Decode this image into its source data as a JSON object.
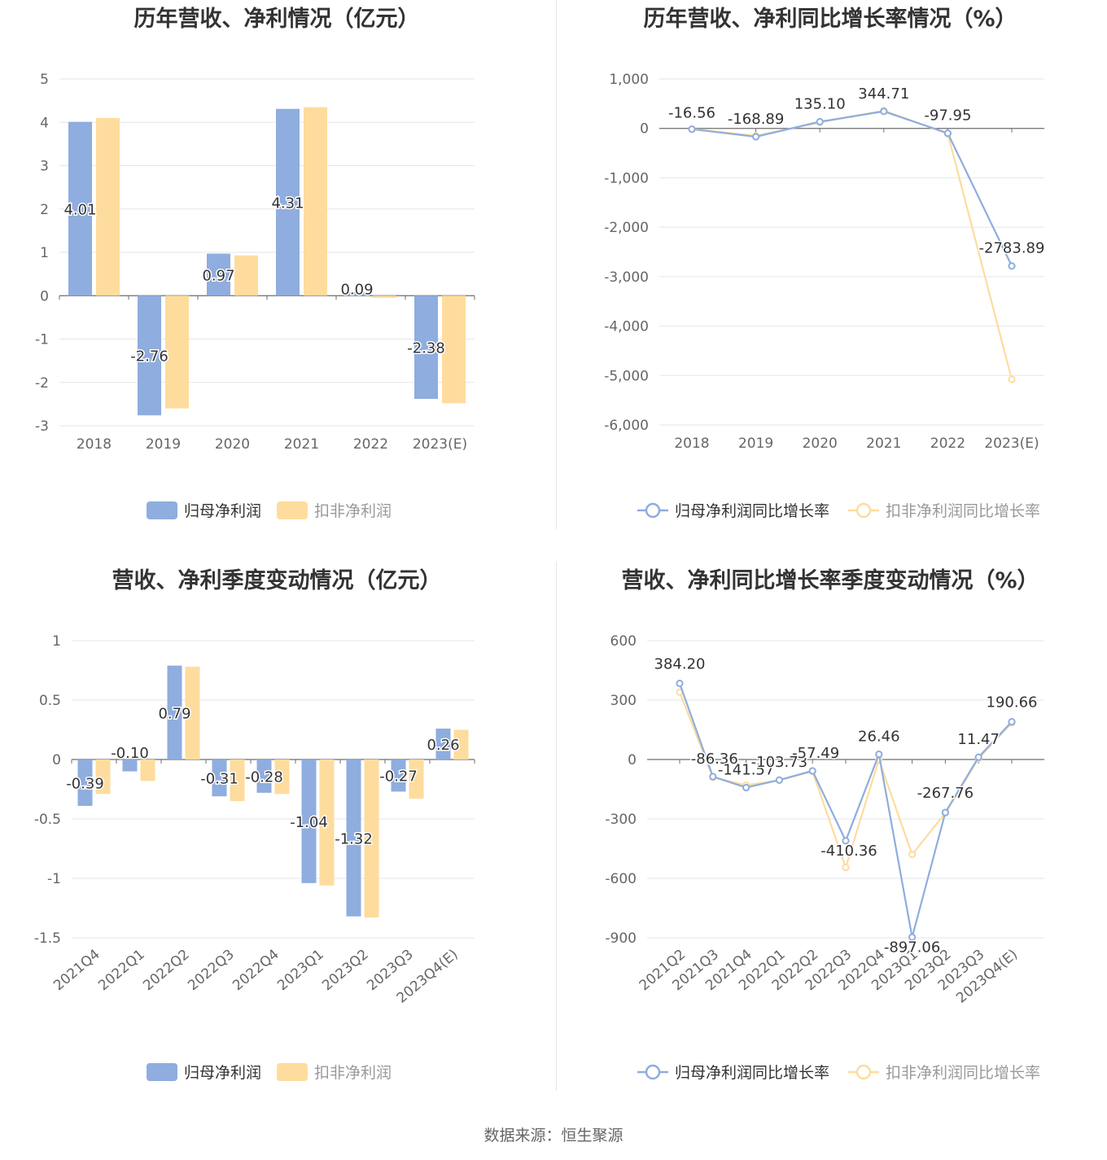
{
  "colors": {
    "blue": "#8fadde",
    "yellow": "#fedc9d",
    "axis": "#6e6e6e",
    "grid": "#e3e6ee",
    "label": "#666666",
    "title": "#333333"
  },
  "source_text": "数据来源：恒生聚源",
  "chart_data": [
    {
      "id": "annual-profit",
      "type": "bar",
      "title": "历年营收、净利情况（亿元）",
      "categories": [
        "2018",
        "2019",
        "2020",
        "2021",
        "2022",
        "2023(E)"
      ],
      "ylim": [
        -3,
        5
      ],
      "yticks": [
        -3,
        -2,
        -1,
        0,
        1,
        2,
        3,
        4,
        5
      ],
      "ytick_labels": [
        "-3",
        "-2",
        "-1",
        "0",
        "1",
        "2",
        "3",
        "4",
        "5"
      ],
      "series": [
        {
          "name": "归母净利润",
          "color": "#8fadde",
          "values": [
            4.01,
            -2.76,
            0.97,
            4.31,
            0.09,
            -2.38
          ],
          "labels": [
            "4.01",
            "-2.76",
            "0.97",
            "4.31",
            "0.09",
            "-2.38"
          ]
        },
        {
          "name": "扣非净利润",
          "color": "#fedc9d",
          "values": [
            4.1,
            -2.6,
            0.93,
            4.35,
            -0.05,
            -2.48
          ]
        }
      ],
      "legend": "bottom",
      "grid": true
    },
    {
      "id": "annual-growth",
      "type": "line",
      "title": "历年营收、净利同比增长率情况（%）",
      "categories": [
        "2018",
        "2019",
        "2020",
        "2021",
        "2022",
        "2023(E)"
      ],
      "ylim": [
        -6000,
        1000
      ],
      "yticks": [
        -6000,
        -5000,
        -4000,
        -3000,
        -2000,
        -1000,
        0,
        1000
      ],
      "ytick_labels": [
        "-6,000",
        "-5,000",
        "-4,000",
        "-3,000",
        "-2,000",
        "-1,000",
        "0",
        "1,000"
      ],
      "series": [
        {
          "name": "归母净利润同比增长率",
          "color": "#8fadde",
          "values": [
            -16.56,
            -168.89,
            135.1,
            344.71,
            -97.95,
            -2783.89
          ],
          "labels": [
            "-16.56",
            "-168.89",
            "135.10",
            "344.71",
            "-97.95",
            "-2783.89"
          ]
        },
        {
          "name": "扣非净利润同比增长率",
          "color": "#fedc9d",
          "values": [
            -10,
            -150,
            120,
            360,
            -110,
            -5080
          ]
        }
      ],
      "legend": "bottom",
      "grid": true
    },
    {
      "id": "quarterly-profit",
      "type": "bar",
      "title": "营收、净利季度变动情况（亿元）",
      "categories": [
        "2021Q4",
        "2022Q1",
        "2022Q2",
        "2022Q3",
        "2022Q4",
        "2023Q1",
        "2023Q2",
        "2023Q3",
        "2023Q4(E)"
      ],
      "ylim": [
        -1.5,
        1
      ],
      "yticks": [
        -1.5,
        -1,
        -0.5,
        0,
        0.5,
        1
      ],
      "ytick_labels": [
        "-1.5",
        "-1",
        "-0.5",
        "0",
        "0.5",
        "1"
      ],
      "series": [
        {
          "name": "归母净利润",
          "color": "#8fadde",
          "values": [
            -0.39,
            -0.1,
            0.79,
            -0.31,
            -0.28,
            -1.04,
            -1.32,
            -0.27,
            0.26
          ],
          "labels": [
            "-0.39",
            "-0.10",
            "0.79",
            "-0.31",
            "-0.28",
            "-1.04",
            "-1.32",
            "-0.27",
            "0.26"
          ]
        },
        {
          "name": "扣非净利润",
          "color": "#fedc9d",
          "values": [
            -0.29,
            -0.18,
            0.78,
            -0.35,
            -0.29,
            -1.06,
            -1.33,
            -0.33,
            0.25
          ]
        }
      ],
      "legend": "bottom",
      "grid": true
    },
    {
      "id": "quarterly-growth",
      "type": "line",
      "title": "营收、净利同比增长率季度变动情况（%）",
      "categories": [
        "2021Q2",
        "2021Q3",
        "2021Q4",
        "2022Q1",
        "2022Q2",
        "2022Q3",
        "2022Q4",
        "2023Q1",
        "2023Q2",
        "2023Q3",
        "2023Q4(E)"
      ],
      "ylim": [
        -900,
        600
      ],
      "yticks": [
        -900,
        -600,
        -300,
        0,
        300,
        600
      ],
      "ytick_labels": [
        "-900",
        "-600",
        "-300",
        "0",
        "300",
        "600"
      ],
      "series": [
        {
          "name": "归母净利润同比增长率",
          "color": "#8fadde",
          "values": [
            384.2,
            -86.36,
            -141.57,
            -103.73,
            -57.49,
            -410.36,
            26.46,
            -897.06,
            -267.76,
            11.47,
            190.66
          ],
          "labels": [
            "384.20",
            "-86.36",
            "-141.57",
            "-103.73",
            "-57.49",
            "-410.36",
            "26.46",
            "-897.06",
            "-267.76",
            "11.47",
            "190.66"
          ]
        },
        {
          "name": "扣非净利润同比增长率",
          "color": "#fedc9d",
          "values": [
            340,
            -90,
            -130,
            -105,
            -60,
            -545,
            0,
            -480,
            -270,
            5,
            185
          ]
        }
      ],
      "legend": "bottom",
      "grid": true
    }
  ]
}
